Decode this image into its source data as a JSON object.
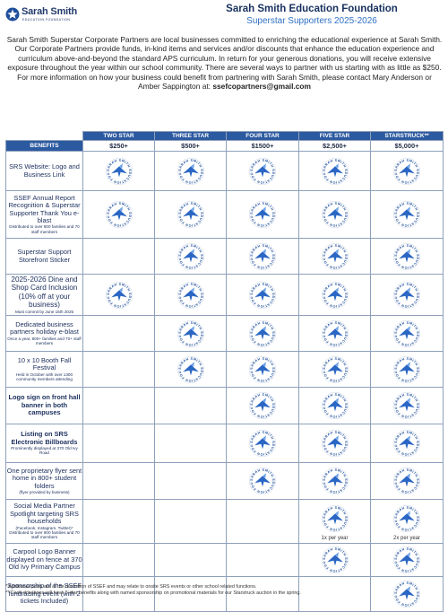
{
  "logo": {
    "name": "Sarah Smith",
    "subtitle": "EDUCATION FOUNDATION"
  },
  "header": {
    "title": "Sarah Smith Education Foundation",
    "subtitle": "Superstar Supporters 2025-2026"
  },
  "intro": {
    "text": "Sarah Smith Superstar Corporate Partners are local businesses committed to enriching the educational experience at Sarah Smith. Our Corporate Partners provide funds, in-kind items and services and/or discounts that enhance the education experience and curriculum above-and-beyond the standard APS curriculum. In return for your generous donations, you will receive extensive exposure throughout the year within our school community. There are several ways to partner with us starting with as little as $250. For more information on how your business could benefit from partnering with Sarah Smith, please contact Mary Anderson or Amber Sappington at: ",
    "email": "ssefcopartners@gmail.com"
  },
  "table": {
    "benefits_header": "BENEFITS",
    "tiers": [
      {
        "name": "TWO STAR",
        "price": "$250+"
      },
      {
        "name": "THREE STAR",
        "price": "$500+"
      },
      {
        "name": "FOUR STAR",
        "price": "$1500+"
      },
      {
        "name": "FIVE STAR",
        "price": "$2,500+"
      },
      {
        "name": "STARSTRUCK**",
        "price": "$5,000+"
      }
    ],
    "badge_text": "SARAH SMITH EDUCATION FOUNDATION",
    "rows": [
      {
        "label": "SRS Website: Logo and Business Link",
        "note": "",
        "style": "",
        "marks": [
          true,
          true,
          true,
          true,
          true
        ],
        "freq": [
          "",
          "",
          "",
          "",
          ""
        ]
      },
      {
        "label": "SSEF Annual Report Recognition & Superstar Supporter Thank You e-blast",
        "note": "Distributed to over 800 families and 70 staff members",
        "style": "",
        "marks": [
          true,
          true,
          true,
          true,
          true
        ],
        "freq": [
          "",
          "",
          "",
          "",
          ""
        ]
      },
      {
        "label": "Superstar Support Storefront Sticker",
        "note": "",
        "style": "",
        "marks": [
          false,
          true,
          true,
          true,
          true
        ],
        "freq": [
          "",
          "",
          "",
          "",
          ""
        ]
      },
      {
        "label": "2025-2026 Dine and Shop Card Inclusion (10% off at your business)",
        "note": "Must commit by June 15th 2025",
        "style": "big",
        "marks": [
          true,
          true,
          true,
          true,
          true
        ],
        "freq": [
          "",
          "",
          "",
          "",
          ""
        ]
      },
      {
        "label": "Dedicated business partners holiday e-blast",
        "note": "Once a year, 800+ families and 70+ staff members",
        "style": "",
        "marks": [
          false,
          true,
          true,
          true,
          true
        ],
        "freq": [
          "",
          "",
          "",
          "",
          ""
        ]
      },
      {
        "label": "10 x 10 Booth Fall Festival",
        "note": "Held in October with over 1300 community members attending",
        "style": "",
        "marks": [
          false,
          true,
          true,
          true,
          true
        ],
        "freq": [
          "",
          "",
          "",
          "",
          ""
        ]
      },
      {
        "label": "Logo sign on front hall banner in both campuses",
        "note": "",
        "style": "bold",
        "marks": [
          false,
          false,
          true,
          true,
          true
        ],
        "freq": [
          "",
          "",
          "",
          "",
          ""
        ]
      },
      {
        "label": "Listing on SRS Electronic Billboards",
        "note": "Prominently displayed at 370 Old Ivy Road",
        "style": "bold",
        "marks": [
          false,
          false,
          true,
          true,
          true
        ],
        "freq": [
          "",
          "",
          "",
          "",
          ""
        ]
      },
      {
        "label": "One proprietary flyer sent home in 800+ student folders",
        "note": "(flyer provided by business)",
        "style": "",
        "marks": [
          false,
          false,
          true,
          true,
          true
        ],
        "freq": [
          "",
          "",
          "",
          "",
          ""
        ]
      },
      {
        "label": "Social Media Partner Spotlight targeting SRS households",
        "note": "(Facebook, Instagram, Twitter)* Distributed to over 800 families and 70 staff members",
        "style": "",
        "marks": [
          false,
          false,
          false,
          true,
          true
        ],
        "freq": [
          "",
          "",
          "",
          "1x per year",
          "2x per year"
        ]
      },
      {
        "label": "Carpool Logo Banner displayed on fence at 370 Old Ivy Primary Campus",
        "note": "",
        "style": "",
        "marks": [
          false,
          false,
          false,
          true,
          true
        ],
        "freq": [
          "",
          "",
          "",
          "",
          ""
        ]
      },
      {
        "label": "Sponsorship of the SSEF fundraising event (with 2 tickets Included)",
        "note": "",
        "style": "",
        "marks": [
          false,
          false,
          false,
          false,
          true
        ],
        "freq": [
          "",
          "",
          "",
          "",
          ""
        ]
      }
    ]
  },
  "footnotes": {
    "line1": "* Additional posts are at the discretion of SSEF and may relate to onsite SRS events or other school related functions.",
    "line2": "** Cash donations will have 5-star benefits along with named sponsorship on promotional materials for our Starstruck auction in the spring."
  },
  "colors": {
    "header_blue": "#2c5aa0",
    "title_navy": "#16305f",
    "subtitle_blue": "#2f6fc3"
  }
}
